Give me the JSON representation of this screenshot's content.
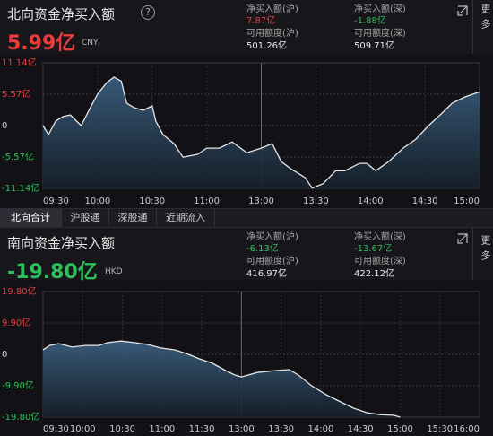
{
  "panels": [
    {
      "title": "北向资金净买入额",
      "help": "?",
      "value": "5.99亿",
      "currency": "CNY",
      "stats": [
        {
          "label": "净买入额(沪)",
          "value": "7.87亿"
        },
        {
          "label": "可用额度(沪)",
          "value": "501.26亿"
        },
        {
          "label": "净买入额(深)",
          "value": "-1.88亿"
        },
        {
          "label": "可用额度(深)",
          "value": "509.71亿"
        }
      ]
    },
    {
      "title": "南向资金净买入额",
      "value": "-19.80亿",
      "currency": "HKD",
      "stats": [
        {
          "label": "净买入额(沪)",
          "value": "-6.13亿"
        },
        {
          "label": "可用额度(沪)",
          "value": "416.97亿"
        },
        {
          "label": "净买入额(深)",
          "value": "-13.67亿"
        },
        {
          "label": "可用额度(深)",
          "value": "422.12亿"
        }
      ]
    }
  ],
  "more": "更多",
  "tabs": [
    "北向合计",
    "沪股通",
    "深股通",
    "近期流入"
  ],
  "chart_data": [
    {
      "type": "line",
      "color": "#e6e6e6",
      "x": [
        "09:30",
        "09:33",
        "09:37",
        "09:41",
        "09:45",
        "09:51",
        "09:56",
        "10:00",
        "10:05",
        "10:09",
        "10:13",
        "10:16",
        "10:20",
        "10:25",
        "10:30",
        "10:32",
        "10:36",
        "10:42",
        "10:47",
        "10:55",
        "11:00",
        "11:07",
        "11:14",
        "11:22",
        "13:00",
        "13:06",
        "13:11",
        "13:16",
        "13:24",
        "13:28",
        "13:34",
        "13:41",
        "13:46",
        "13:54",
        "13:58",
        "14:03",
        "14:10",
        "14:18",
        "14:25",
        "14:32",
        "14:40",
        "14:45",
        "14:52",
        "15:00"
      ],
      "values": [
        0,
        -1.6,
        0.8,
        1.6,
        1.9,
        0,
        3.2,
        5.6,
        7.6,
        8.6,
        7.9,
        4.0,
        3.2,
        2.7,
        3.5,
        0.8,
        -1.6,
        -3.2,
        -5.6,
        -5.1,
        -4.0,
        -4.0,
        -2.9,
        -4.8,
        -4.0,
        -3.2,
        -6.4,
        -7.6,
        -9.2,
        -11.1,
        -10.3,
        -8.0,
        -8.0,
        -6.7,
        -6.7,
        -8.0,
        -6.4,
        -4.0,
        -2.4,
        0,
        2.4,
        4.0,
        5.1,
        5.99
      ],
      "xticks": [
        "09:30",
        "10:00",
        "10:30",
        "11:00",
        "13:00",
        "13:30",
        "14:00",
        "14:30",
        "15:00"
      ],
      "ylim": [
        -11.14,
        11.14
      ],
      "yticks": [
        {
          "value": 11.14,
          "label": "11.14亿"
        },
        {
          "value": 5.57,
          "label": "5.57亿"
        },
        0,
        {
          "value": -5.57,
          "label": "-5.57亿"
        },
        {
          "value": -11.14,
          "label": "-11.14亿"
        }
      ],
      "grid": true
    },
    {
      "type": "line",
      "color": "#e6e6e6",
      "x": [
        "09:30",
        "09:35",
        "09:42",
        "09:52",
        "10:02",
        "10:12",
        "10:19",
        "10:29",
        "10:39",
        "10:49",
        "10:59",
        "11:10",
        "11:20",
        "11:28",
        "11:38",
        "11:48",
        "11:55",
        "12:00",
        "13:12",
        "13:26",
        "13:36",
        "13:43",
        "13:53",
        "14:04",
        "14:15",
        "14:25",
        "14:35",
        "14:45",
        "14:55",
        "15:00"
      ],
      "values": [
        1.4,
        2.8,
        3.4,
        2.3,
        2.8,
        2.8,
        3.7,
        4.2,
        3.7,
        3.1,
        2.0,
        1.4,
        0,
        -1.4,
        -2.8,
        -5.1,
        -6.5,
        -7.1,
        -5.7,
        -5.1,
        -4.8,
        -6.5,
        -9.9,
        -12.7,
        -15.0,
        -17.0,
        -18.4,
        -19.0,
        -19.2,
        -19.8
      ],
      "xticks": [
        "09:30",
        "10:00",
        "10:30",
        "11:00",
        "11:30",
        "13:00",
        "13:30",
        "14:00",
        "14:30",
        "15:00",
        "15:30",
        "16:00"
      ],
      "ylim": [
        -19.8,
        19.8
      ],
      "yticks": [
        {
          "value": 19.8,
          "label": "19.80亿"
        },
        {
          "value": 9.9,
          "label": "9.90亿"
        },
        0,
        {
          "value": -9.9,
          "label": "-9.90亿"
        },
        {
          "value": -19.8,
          "label": "-19.80亿"
        }
      ],
      "grid": true
    }
  ]
}
